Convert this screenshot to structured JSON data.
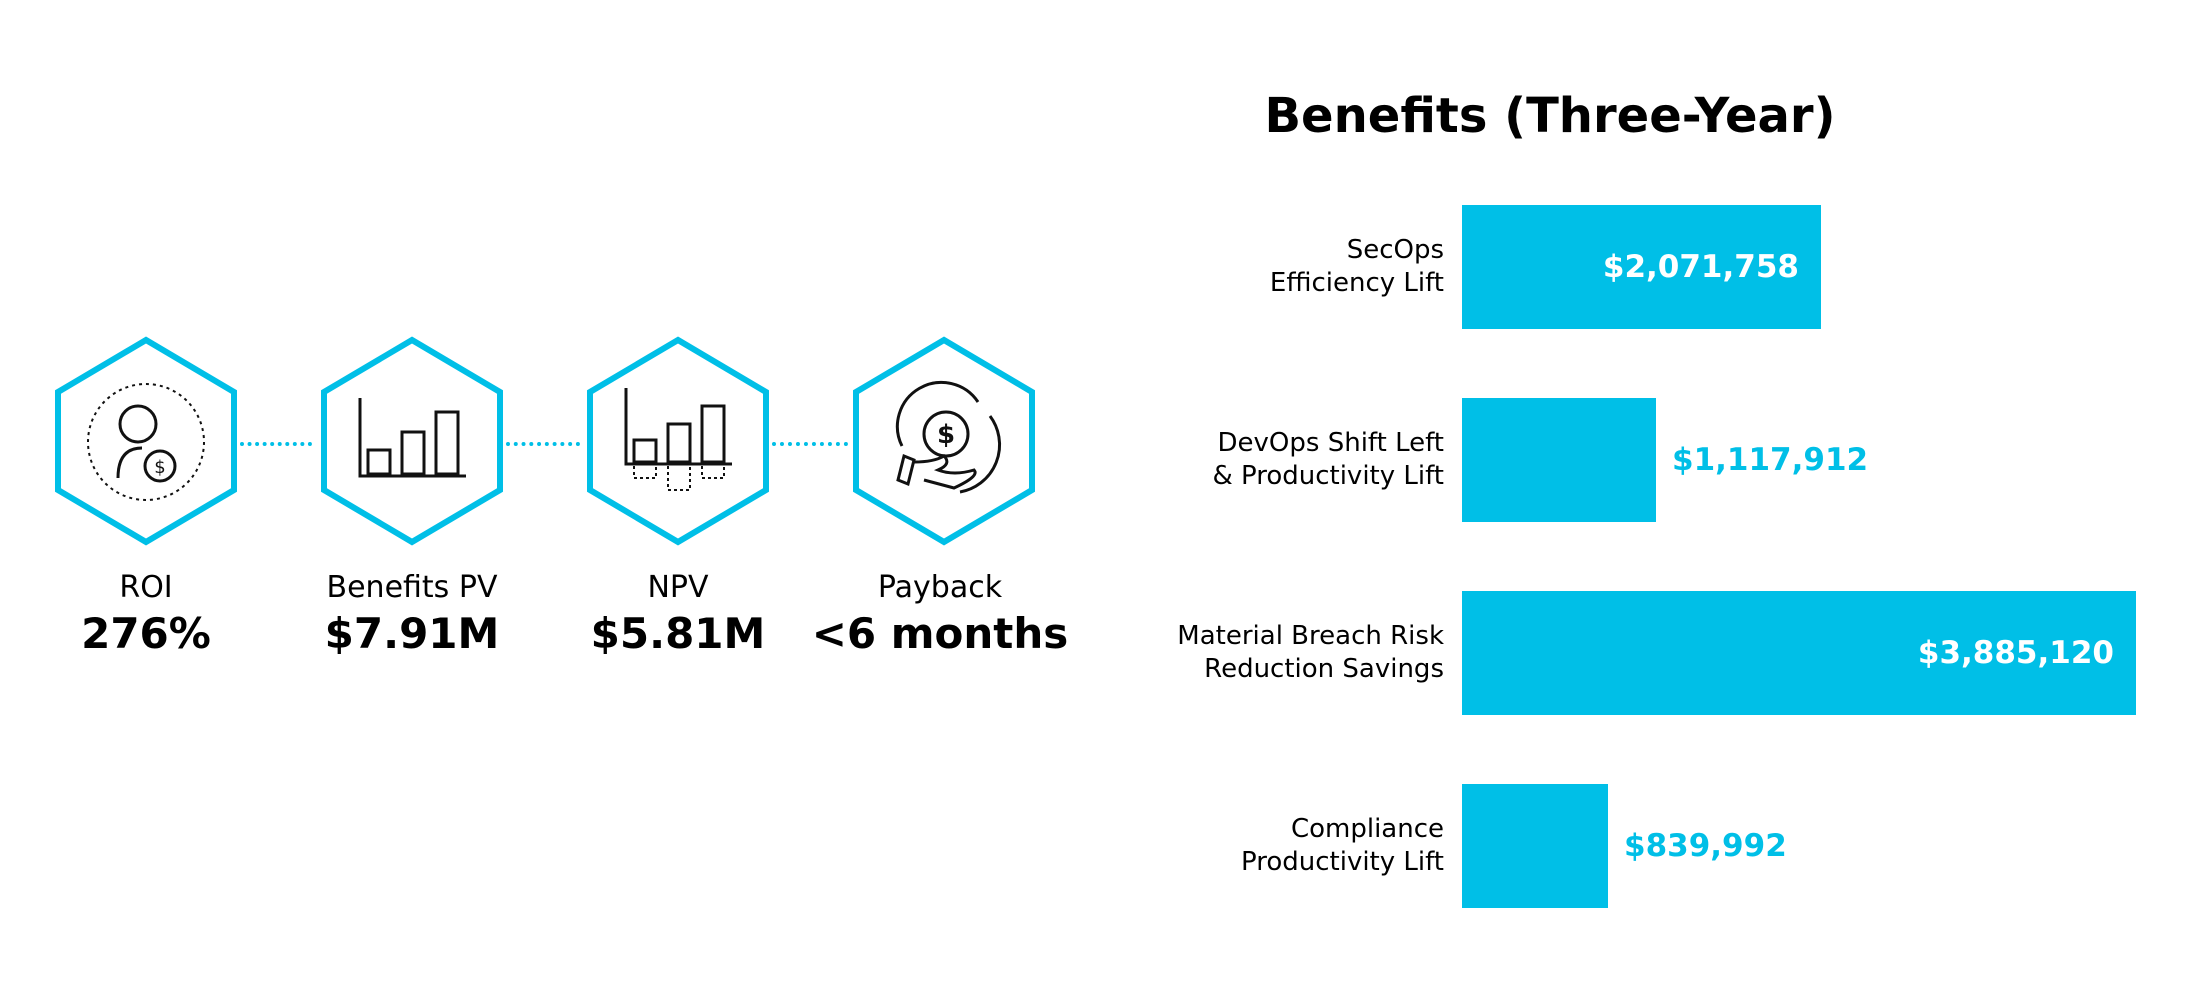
{
  "metrics": [
    {
      "label": "ROI",
      "value": "276%",
      "icon": "person-coin-cycle-icon"
    },
    {
      "label": "Benefits PV",
      "value": "$7.91M",
      "icon": "bar-chart-icon"
    },
    {
      "label": "NPV",
      "value": "$5.81M",
      "icon": "bar-chart-negative-icon"
    },
    {
      "label": "Payback",
      "value": "<6 months",
      "icon": "hand-coin-cycle-icon"
    }
  ],
  "colors": {
    "accent": "#00bfe7",
    "text": "#000000"
  },
  "chart_data": {
    "type": "bar",
    "orientation": "horizontal",
    "title": "Benefits (Three-Year)",
    "categories": [
      [
        "SecOps",
        "Efficiency Lift"
      ],
      [
        "DevOps Shift Left",
        "& Productivity Lift"
      ],
      [
        "Material Breach Risk",
        "Reduction Savings"
      ],
      [
        "Compliance",
        "Productivity Lift"
      ]
    ],
    "values": [
      2071758,
      1117912,
      3885120,
      839992
    ],
    "value_labels": [
      "$2,071,758",
      "$1,117,912",
      "$3,885,120",
      "$839,992"
    ],
    "xlabel": "",
    "ylabel": "",
    "xlim": [
      0,
      3885120
    ],
    "grid": false
  }
}
